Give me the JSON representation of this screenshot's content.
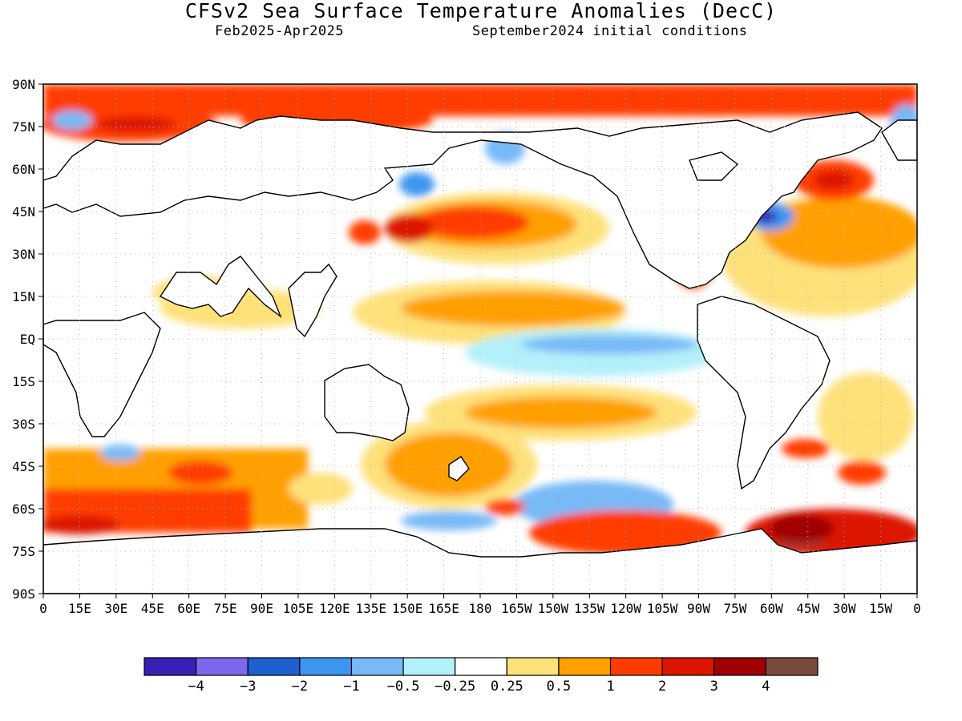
{
  "title": "CFSv2 Sea Surface Temperature Anomalies (DecC)",
  "subtitle_left": "Feb2025-Apr2025",
  "subtitle_right": "September2024 initial conditions",
  "lat_labels": [
    "90N",
    "75N",
    "60N",
    "45N",
    "30N",
    "15N",
    "EQ",
    "15S",
    "30S",
    "45S",
    "60S",
    "75S",
    "90S"
  ],
  "lon_labels": [
    "0",
    "15E",
    "30E",
    "45E",
    "60E",
    "75E",
    "90E",
    "105E",
    "120E",
    "135E",
    "150E",
    "165E",
    "180",
    "165W",
    "150W",
    "135W",
    "120W",
    "105W",
    "90W",
    "75W",
    "60W",
    "45W",
    "30W",
    "15W",
    "0"
  ],
  "colorbar": {
    "labels": [
      "-4",
      "-3",
      "-2",
      "-1",
      "-0.5",
      "-0.25",
      "0.25",
      "0.5",
      "1",
      "2",
      "3",
      "4"
    ],
    "colors": [
      "#3a1fb4",
      "#7b68ee",
      "#1f5fd0",
      "#3c96f0",
      "#78b9f7",
      "#b4f0fa",
      "#ffffff",
      "#ffe17a",
      "#ffa000",
      "#ff3c00",
      "#dc1400",
      "#a00000",
      "#7a4a3c"
    ]
  }
}
